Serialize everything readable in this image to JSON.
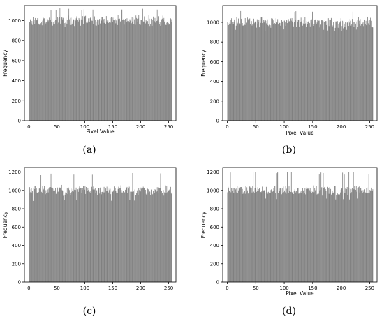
{
  "chart_data": [
    {
      "type": "bar",
      "panel_label": "(a)",
      "xlabel": "Pixel Value",
      "ylabel": "Frequency",
      "xlim": [
        -8,
        263
      ],
      "ylim": [
        0,
        1150
      ],
      "xticks": [
        0,
        50,
        100,
        150,
        200,
        250
      ],
      "yticks": [
        0,
        200,
        400,
        600,
        800,
        1000
      ],
      "bins": 256,
      "bar_color": "#808080",
      "mean_value": 1000,
      "min_value": 940,
      "max_value": 1125
    },
    {
      "type": "bar",
      "panel_label": "(b)",
      "xlabel": "Pixel Value",
      "ylabel": "Frequency",
      "xlim": [
        -8,
        263
      ],
      "ylim": [
        0,
        1170
      ],
      "xticks": [
        0,
        50,
        100,
        150,
        200,
        250
      ],
      "yticks": [
        0,
        200,
        400,
        600,
        800,
        1000
      ],
      "bins": 256,
      "bar_color": "#808080",
      "mean_value": 1000,
      "min_value": 910,
      "max_value": 1120
    },
    {
      "type": "bar",
      "panel_label": "(c)",
      "xlabel": "",
      "ylabel": "Frequency",
      "xlim": [
        -8,
        263
      ],
      "ylim": [
        0,
        1250
      ],
      "xticks": [
        0,
        50,
        100,
        150,
        200,
        250
      ],
      "yticks": [
        0,
        200,
        400,
        600,
        800,
        1000,
        1200
      ],
      "bins": 256,
      "bar_color": "#808080",
      "mean_value": 1000,
      "min_value": 880,
      "max_value": 1190
    },
    {
      "type": "bar",
      "panel_label": "(d)",
      "xlabel": "Pixel Value",
      "ylabel": "Frequency",
      "xlim": [
        -8,
        263
      ],
      "ylim": [
        0,
        1250
      ],
      "xticks": [
        0,
        50,
        100,
        150,
        200,
        250
      ],
      "yticks": [
        0,
        200,
        400,
        600,
        800,
        1000,
        1200
      ],
      "bins": 256,
      "bar_color": "#808080",
      "mean_value": 1000,
      "min_value": 900,
      "max_value": 1200
    }
  ]
}
